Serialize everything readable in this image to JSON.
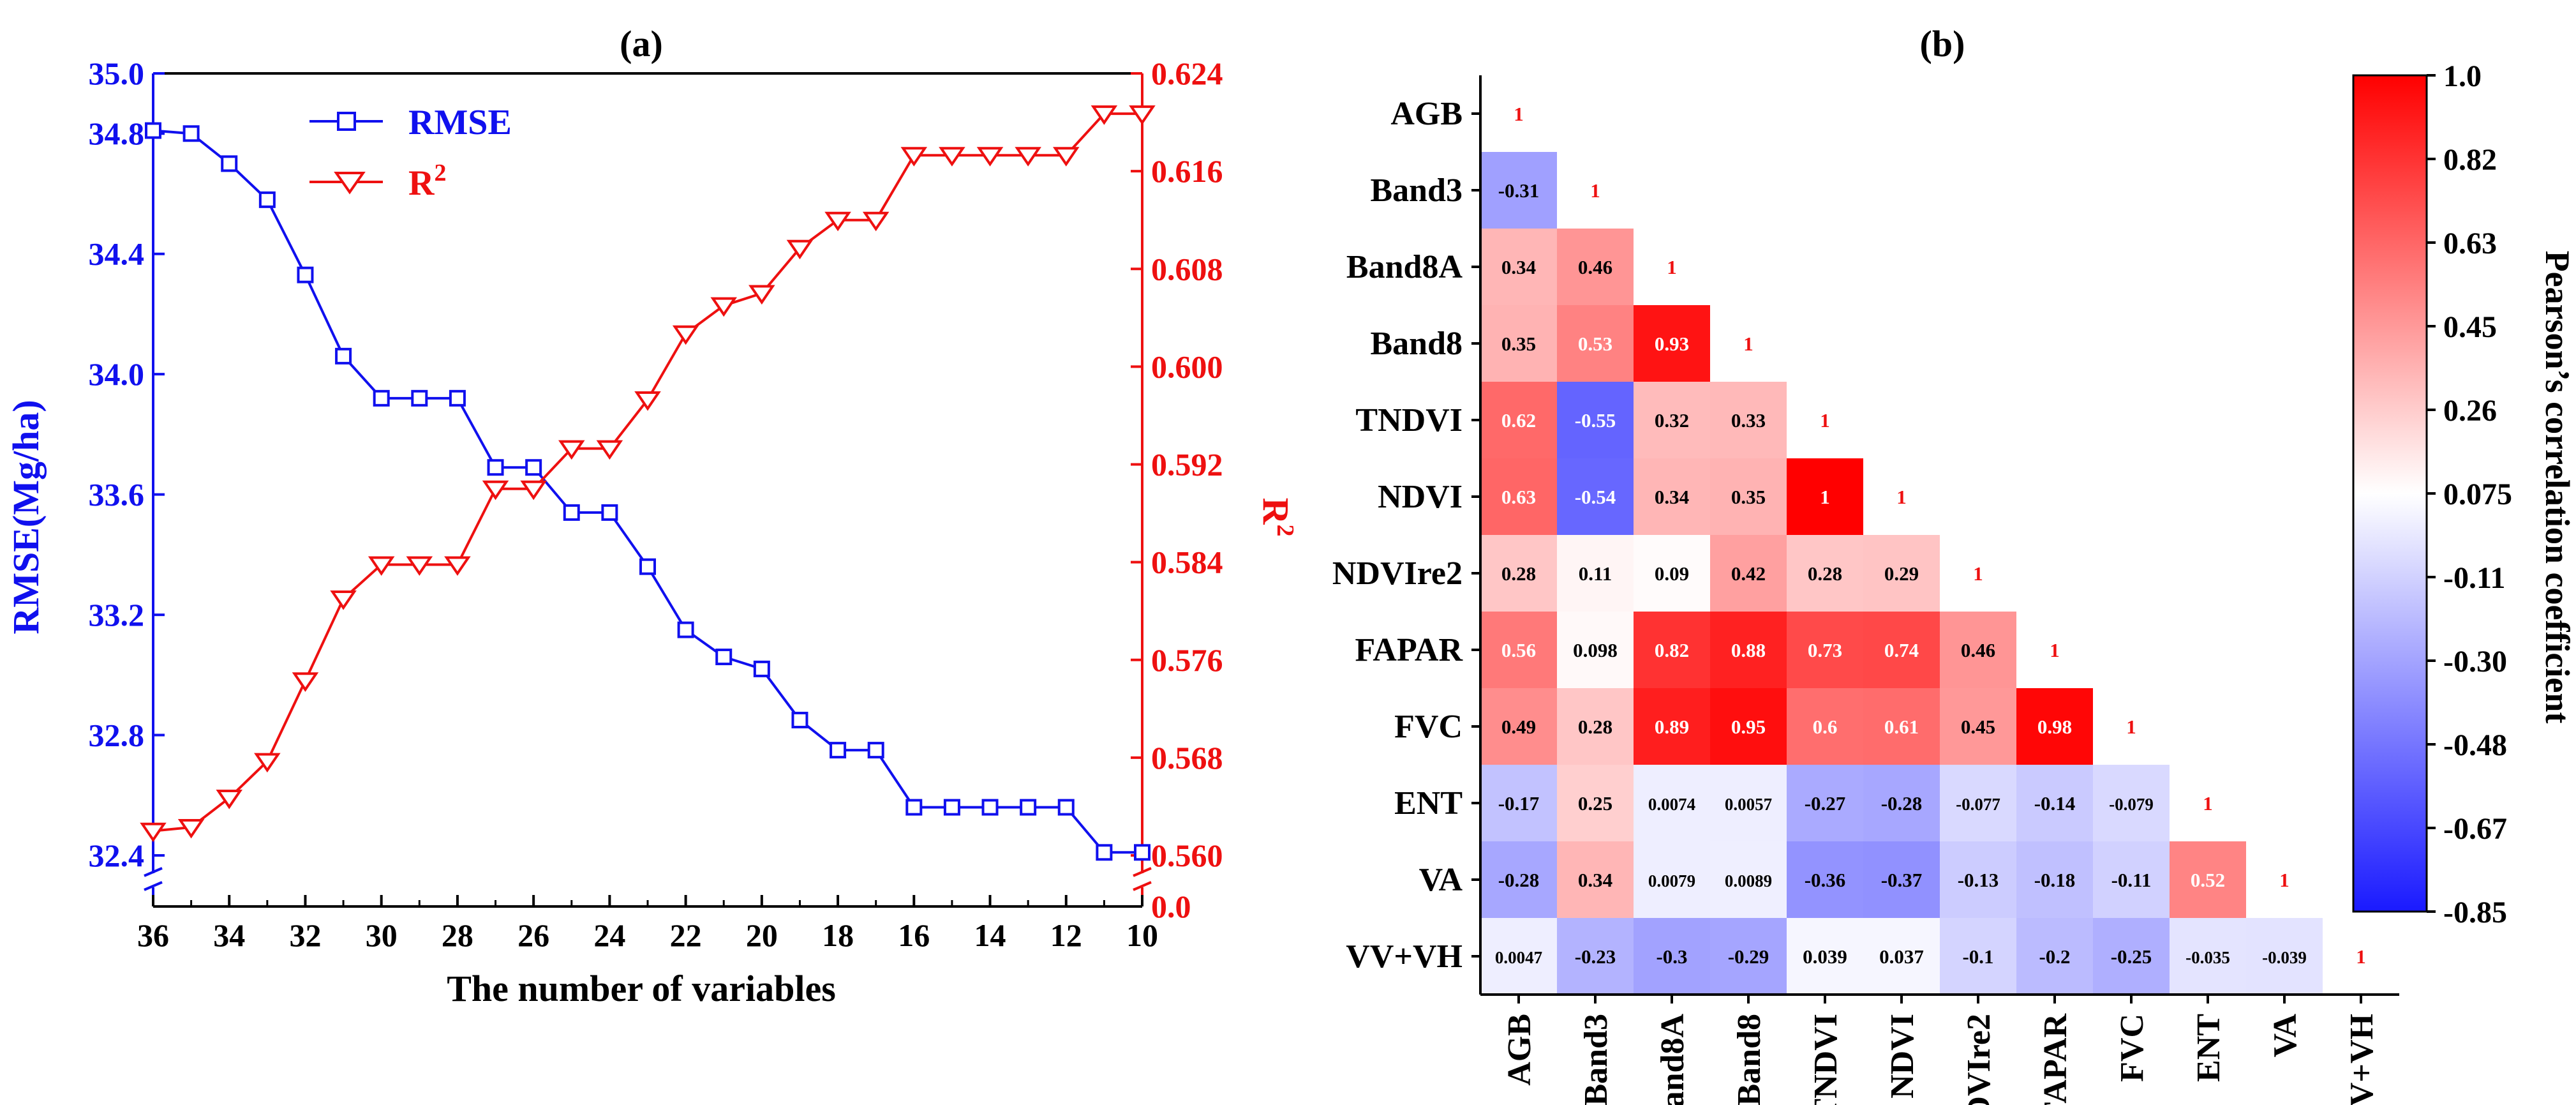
{
  "chart_data": [
    {
      "type": "line",
      "panel_label": "(a)",
      "xlabel": "The number of variables",
      "ylabel_left": "RMSE(Mg/ha)",
      "ylabel_right": "R²",
      "xlim": [
        36,
        10
      ],
      "ylim_left": [
        32.4,
        35.0
      ],
      "ylim_right": [
        0.56,
        0.624
      ],
      "right_axis_break_label": "0.0",
      "x_ticks": [
        36,
        34,
        32,
        30,
        28,
        26,
        24,
        22,
        20,
        18,
        16,
        14,
        12,
        10
      ],
      "y_ticks_left": [
        32.4,
        32.8,
        33.2,
        33.6,
        34.0,
        34.4,
        34.8,
        35.0
      ],
      "y_ticks_right": [
        0.56,
        0.568,
        0.576,
        0.584,
        0.592,
        0.6,
        0.608,
        0.616,
        0.624
      ],
      "x": [
        36,
        35,
        34,
        33,
        32,
        31,
        30,
        29,
        28,
        27,
        26,
        25,
        24,
        23,
        22,
        21,
        20,
        19,
        18,
        17,
        16,
        15,
        14,
        13,
        12,
        11,
        10
      ],
      "series": [
        {
          "name": "RMSE",
          "axis": "left",
          "marker": "square",
          "color": "#1010ee",
          "values": [
            34.81,
            34.8,
            34.7,
            34.58,
            34.33,
            34.06,
            33.92,
            33.92,
            33.92,
            33.69,
            33.69,
            33.54,
            33.54,
            33.36,
            33.15,
            33.06,
            33.02,
            32.85,
            32.75,
            32.75,
            32.56,
            32.56,
            32.56,
            32.56,
            32.56,
            32.41,
            32.41
          ]
        },
        {
          "name": "R2",
          "label_main": "R",
          "label_sup": "2",
          "axis": "right",
          "marker": "triangle-down",
          "color": "#ee1010",
          "values": [
            0.562,
            0.5623,
            0.5647,
            0.5677,
            0.5743,
            0.581,
            0.5838,
            0.5838,
            0.5838,
            0.59,
            0.59,
            0.5933,
            0.5933,
            0.5973,
            0.6027,
            0.605,
            0.606,
            0.6097,
            0.612,
            0.612,
            0.6173,
            0.6173,
            0.6173,
            0.6173,
            0.6173,
            0.6207,
            0.6207
          ]
        }
      ]
    },
    {
      "type": "heatmap",
      "panel_label": "(b)",
      "variables": [
        "AGB",
        "Band3",
        "Band8A",
        "Band8",
        "TNDVI",
        "NDVI",
        "NDVIre2",
        "FAPAR",
        "FVC",
        "ENT",
        "VA",
        "VV+VH"
      ],
      "matrix": [
        [
          "1"
        ],
        [
          "-0.31",
          "1"
        ],
        [
          "0.34",
          "0.46",
          "1"
        ],
        [
          "0.35",
          "0.53",
          "0.93",
          "1"
        ],
        [
          "0.62",
          "-0.55",
          "0.32",
          "0.33",
          "1"
        ],
        [
          "0.63",
          "-0.54",
          "0.34",
          "0.35",
          "1",
          "1"
        ],
        [
          "0.28",
          "0.11",
          "0.09",
          "0.42",
          "0.28",
          "0.29",
          "1"
        ],
        [
          "0.56",
          "0.098",
          "0.82",
          "0.88",
          "0.73",
          "0.74",
          "0.46",
          "1"
        ],
        [
          "0.49",
          "0.28",
          "0.89",
          "0.95",
          "0.6",
          "0.61",
          "0.45",
          "0.98",
          "1"
        ],
        [
          "-0.17",
          "0.25",
          "0.0074",
          "0.0057",
          "-0.27",
          "-0.28",
          "-0.077",
          "-0.14",
          "-0.079",
          "1"
        ],
        [
          "-0.28",
          "0.34",
          "0.0079",
          "0.0089",
          "-0.36",
          "-0.37",
          "-0.13",
          "-0.18",
          "-0.11",
          "0.52",
          "1"
        ],
        [
          "0.0047",
          "-0.23",
          "-0.3",
          "-0.29",
          "0.039",
          "0.037",
          "-0.1",
          "-0.2",
          "-0.25",
          "-0.035",
          "-0.039",
          "1"
        ]
      ],
      "colorbar": {
        "label": "Pearson’s correlation coefficient",
        "min": -0.85,
        "max": 1.0,
        "ticks": [
          "1.0",
          "0.82",
          "0.63",
          "0.45",
          "0.26",
          "0.075",
          "-0.11",
          "-0.30",
          "-0.48",
          "-0.67",
          "-0.85"
        ],
        "colors": {
          "low": "#1a1aff",
          "mid": "#ffffff",
          "high": "#ff0000"
        }
      }
    }
  ]
}
